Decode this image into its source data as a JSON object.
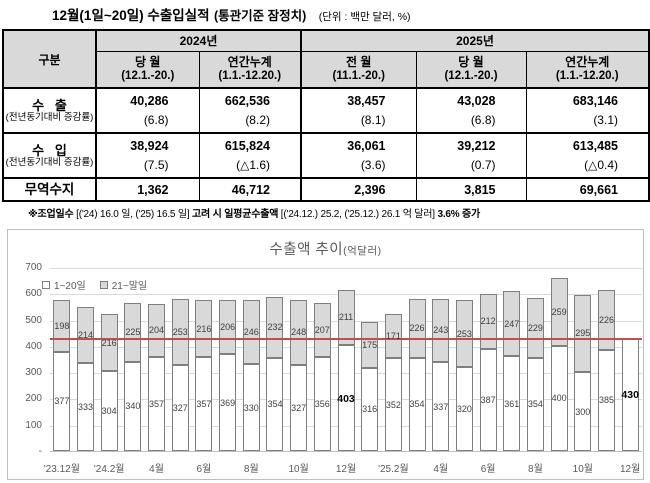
{
  "title": {
    "main": "12월(1일~20일) 수출입실적",
    "paren": "(통관기준 잠정치)",
    "unit": "(단위 : 백만 달러, %)"
  },
  "table": {
    "corner_label": "구분",
    "year_headers": [
      "2024년",
      "2025년"
    ],
    "col_headers": [
      {
        "line1": "당 월",
        "line2": "(12.1.-20.)"
      },
      {
        "line1": "연간누계",
        "line2": "(1.1.-12.20.)"
      },
      {
        "line1": "전 월",
        "line2": "(11.1.-20.)"
      },
      {
        "line1": "당 월",
        "line2": "(12.1.-20.)"
      },
      {
        "line1": "연간누계",
        "line2": "(1.1.-12.20.)"
      }
    ],
    "rows": [
      {
        "label": "수   출",
        "sublabel": "(전년동기대비 증감률)",
        "values": [
          "40,286",
          "662,536",
          "38,457",
          "43,028",
          "683,146"
        ],
        "pcts": [
          "(6.8)",
          "(8.2)",
          "(8.1)",
          "(6.8)",
          "(3.1)"
        ]
      },
      {
        "label": "수   입",
        "sublabel": "(전년동기대비 증감률)",
        "values": [
          "38,924",
          "615,824",
          "36,061",
          "39,212",
          "613,485"
        ],
        "pcts": [
          "(7.5)",
          "(△1.6)",
          "(3.6)",
          "(0.7)",
          "(△0.4)"
        ]
      },
      {
        "label": "무역수지",
        "values": [
          "1,362",
          "46,712",
          "2,396",
          "3,815",
          "69,661"
        ]
      }
    ]
  },
  "note": {
    "b1": "※조업일수",
    "r1": " [('24) 16.0 일, ('25) 16.5 일] ",
    "b2": "고려 시 일평균수출액",
    "r2": " [('24.12.) 25.2, ('25.12.) 26.1 억 달러] ",
    "b3": "3.6% 증가"
  },
  "chart_data": {
    "type": "bar",
    "stacked": true,
    "title": "수출액 추이",
    "title_unit": "(억달러)",
    "legend": [
      "1~20일",
      "21~말일"
    ],
    "legend_position": "top-left-inside",
    "grid": true,
    "ylim": [
      0,
      700
    ],
    "ytick_step": 100,
    "ytick_zero_label": "-",
    "reference_line": {
      "value": 430,
      "color": "#c0504d"
    },
    "categories": [
      "'23.12월",
      "",
      "'24.2월",
      "",
      "4월",
      "",
      "6월",
      "",
      "8월",
      "",
      "10월",
      "",
      "12월",
      "",
      "'25.2월",
      "",
      "4월",
      "",
      "6월",
      "",
      "8월",
      "",
      "10월",
      "",
      "12월"
    ],
    "series": [
      {
        "name": "1~20일",
        "values": [
          377,
          333,
          304,
          340,
          357,
          327,
          357,
          369,
          330,
          354,
          327,
          356,
          403,
          316,
          352,
          354,
          337,
          320,
          387,
          361,
          354,
          400,
          300,
          385,
          430
        ]
      },
      {
        "name": "21~말일",
        "values": [
          198,
          214,
          216,
          225,
          204,
          253,
          216,
          206,
          246,
          232,
          248,
          207,
          211,
          175,
          171,
          226,
          243,
          253,
          212,
          247,
          229,
          259,
          295,
          226,
          null
        ]
      }
    ],
    "emphasized_indexes": [
      12,
      24
    ],
    "colors": {
      "series1_fill": "#ffffff",
      "series2_fill": "#d9d9d9",
      "bar_border": "#7f7f7f",
      "gridline": "#d9d9d9",
      "axis_text": "#595959",
      "reference": "#c0504d"
    }
  }
}
